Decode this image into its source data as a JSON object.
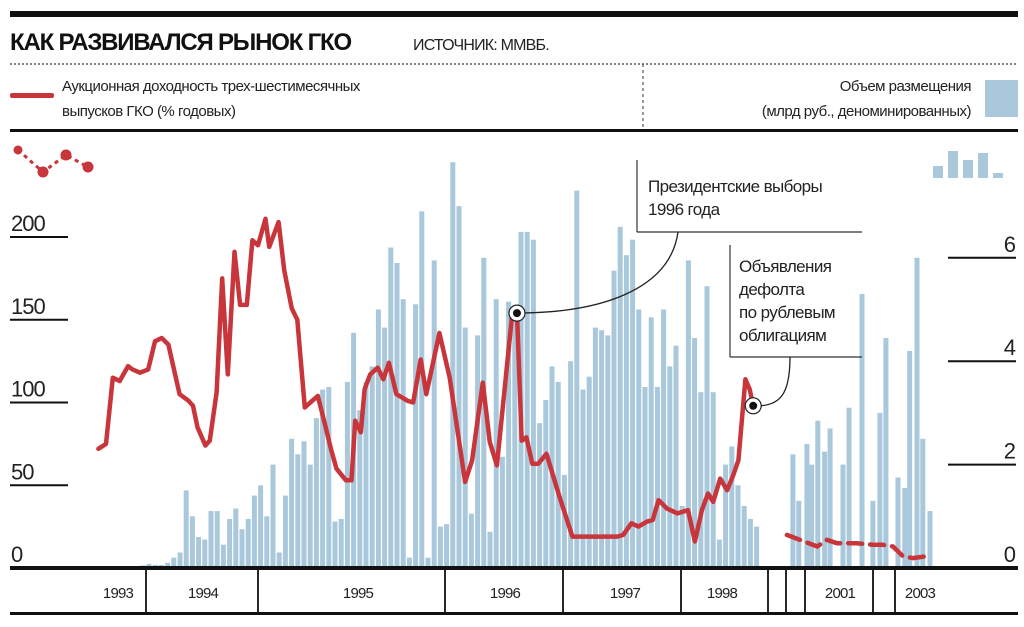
{
  "header": {
    "title": "КАК РАЗВИВАЛСЯ РЫНОК ГКО",
    "source": "ИСТОЧНИК: ММВБ."
  },
  "legend": {
    "line_label_1": "Аукционная доходность трех-шестимесячных",
    "line_label_2": "выпусков ГКО (% годовых)",
    "bar_label_1": "Объем размещения",
    "bar_label_2": "(млрд руб., деноминированных)"
  },
  "colors": {
    "line": "#c8353a",
    "bar": "#a9c8db",
    "text": "#222222"
  },
  "chart_data": {
    "type": "bar+line",
    "title": "КАК РАЗВИВАЛСЯ РЫНОК ГКО",
    "left_axis": {
      "label": "Аукционная доходность трех-шестимесячных выпусков ГКО (% годовых)",
      "ticks": [
        "0",
        "50",
        "100",
        "150",
        "200"
      ],
      "tick_values": [
        0,
        50,
        100,
        150,
        200
      ],
      "range": [
        0,
        210
      ]
    },
    "right_axis": {
      "label": "Объем размещения (млрд руб., деноминированных)",
      "ticks": [
        "0",
        "2",
        "4",
        "6"
      ],
      "tick_values": [
        0,
        2,
        4,
        6
      ],
      "range": [
        0,
        8
      ]
    },
    "x_axis": {
      "year_labels": [
        "1993",
        "1994",
        "1995",
        "1996",
        "1997",
        "1998",
        "2001",
        "2003"
      ]
    },
    "bars_segment_1": {
      "start_year": 1993.89,
      "end_year": 1998.87,
      "values": [
        0.02,
        0.05,
        0.08,
        0.06,
        0.06,
        0.1,
        0.2,
        0.3,
        1.5,
        1.0,
        0.6,
        0.55,
        1.1,
        1.1,
        0.45,
        0.95,
        1.15,
        0.75,
        0.95,
        1.4,
        1.6,
        1.0,
        2.0,
        0.3,
        1.4,
        2.5,
        2.2,
        2.45,
        2.0,
        2.9,
        3.45,
        3.5,
        0.9,
        0.95,
        3.6,
        4.55,
        3.05,
        3.6,
        3.9,
        5.0,
        4.65,
        6.2,
        5.9,
        5.2,
        0.2,
        5.1,
        6.9,
        0.2,
        5.95,
        0.8,
        0.85,
        7.85,
        7.0,
        4.65,
        1.05,
        4.5,
        6.0,
        0.7,
        5.2,
        2.15,
        5.15,
        5.0,
        6.5,
        6.5,
        6.35,
        2.8,
        3.25,
        3.9,
        3.6,
        1.8,
        4.0,
        7.3,
        3.45,
        3.7,
        4.65,
        4.6,
        4.5,
        5.75,
        6.6,
        6.05,
        6.35,
        5.0,
        3.5,
        4.85,
        3.5,
        5.0,
        3.9,
        4.3,
        1.2,
        5.95,
        4.45,
        3.4,
        5.45,
        3.4,
        0.55,
        2.0,
        2.35,
        1.6,
        1.2,
        0.95,
        0.8
      ]
    },
    "bars_segment_2": [
      [
        2000.37,
        2.2
      ],
      [
        2000.68,
        1.3
      ],
      [
        2001.03,
        2.4
      ],
      [
        2001.1,
        2.0
      ],
      [
        2001.19,
        2.85
      ],
      [
        2001.29,
        2.25
      ],
      [
        2001.37,
        2.7
      ],
      [
        2001.56,
        2.0
      ],
      [
        2001.65,
        3.1
      ],
      [
        2001.84,
        5.3
      ],
      [
        2002.0,
        1.3
      ],
      [
        2002.32,
        3.0
      ],
      [
        2002.59,
        4.45
      ],
      [
        2003.07,
        1.75
      ],
      [
        2003.22,
        1.55
      ],
      [
        2003.33,
        4.2
      ],
      [
        2003.49,
        6.0
      ],
      [
        2003.62,
        2.5
      ],
      [
        2003.78,
        1.1
      ]
    ],
    "yield_segment_1": [
      [
        1993.44,
        72
      ],
      [
        1993.53,
        75
      ],
      [
        1993.61,
        115
      ],
      [
        1993.69,
        113
      ],
      [
        1993.79,
        122
      ],
      [
        1993.84,
        120
      ],
      [
        1993.93,
        118
      ],
      [
        1994.02,
        120
      ],
      [
        1994.08,
        137
      ],
      [
        1994.14,
        139
      ],
      [
        1994.2,
        135
      ],
      [
        1994.26,
        117
      ],
      [
        1994.3,
        105
      ],
      [
        1994.38,
        101
      ],
      [
        1994.42,
        98
      ],
      [
        1994.46,
        85
      ],
      [
        1994.53,
        74
      ],
      [
        1994.57,
        77
      ],
      [
        1994.63,
        106
      ],
      [
        1994.68,
        175
      ],
      [
        1994.73,
        117
      ],
      [
        1994.79,
        191
      ],
      [
        1994.84,
        159
      ],
      [
        1994.9,
        159
      ],
      [
        1994.95,
        198
      ],
      [
        1995.0,
        195
      ],
      [
        1995.04,
        211
      ],
      [
        1995.06,
        194
      ],
      [
        1995.11,
        209
      ],
      [
        1995.14,
        180
      ],
      [
        1995.18,
        157
      ],
      [
        1995.21,
        150
      ],
      [
        1995.25,
        97
      ],
      [
        1995.29,
        101
      ],
      [
        1995.32,
        104
      ],
      [
        1995.36,
        86
      ],
      [
        1995.39,
        72
      ],
      [
        1995.42,
        60
      ],
      [
        1995.47,
        53
      ],
      [
        1995.5,
        53
      ],
      [
        1995.52,
        89
      ],
      [
        1995.55,
        82
      ],
      [
        1995.57,
        108
      ],
      [
        1995.6,
        117
      ],
      [
        1995.64,
        121
      ],
      [
        1995.67,
        114
      ],
      [
        1995.7,
        124
      ],
      [
        1995.74,
        105
      ],
      [
        1995.8,
        101
      ],
      [
        1995.83,
        100
      ],
      [
        1995.87,
        126
      ],
      [
        1995.9,
        105
      ],
      [
        1995.97,
        142
      ],
      [
        1996.04,
        115
      ],
      [
        1996.17,
        52
      ],
      [
        1996.23,
        65
      ],
      [
        1996.32,
        112
      ],
      [
        1996.38,
        76
      ],
      [
        1996.44,
        62
      ],
      [
        1996.57,
        154
      ],
      [
        1996.61,
        154
      ],
      [
        1996.65,
        77
      ],
      [
        1996.69,
        79
      ],
      [
        1996.74,
        63
      ],
      [
        1996.79,
        63
      ],
      [
        1996.86,
        69
      ],
      [
        1996.97,
        43
      ],
      [
        1997.08,
        19
      ],
      [
        1997.17,
        19
      ],
      [
        1997.31,
        19
      ],
      [
        1997.46,
        19
      ],
      [
        1997.51,
        20
      ],
      [
        1997.58,
        27
      ],
      [
        1997.64,
        25
      ],
      [
        1997.71,
        28
      ],
      [
        1997.76,
        29
      ],
      [
        1997.81,
        41
      ],
      [
        1997.88,
        36
      ],
      [
        1997.97,
        33
      ],
      [
        1998.08,
        35
      ],
      [
        1998.16,
        16
      ],
      [
        1998.24,
        35
      ],
      [
        1998.31,
        45
      ],
      [
        1998.37,
        40
      ],
      [
        1998.45,
        54
      ],
      [
        1998.53,
        47
      ],
      [
        1998.6,
        56
      ],
      [
        1998.66,
        65
      ],
      [
        1998.74,
        114
      ],
      [
        1998.79,
        108
      ],
      [
        1998.83,
        98
      ]
    ],
    "yield_segment_2": [
      [
        2000.05,
        20
      ],
      [
        2000.74,
        17
      ],
      [
        2001.18,
        13
      ],
      [
        2001.32,
        17
      ],
      [
        2001.47,
        15
      ],
      [
        2001.59,
        15
      ],
      [
        2001.76,
        15
      ],
      [
        2002.0,
        14
      ],
      [
        2002.45,
        14
      ],
      [
        2002.91,
        13
      ],
      [
        2003.18,
        7
      ],
      [
        2003.4,
        6
      ],
      [
        2003.67,
        7
      ]
    ],
    "annotations": [
      {
        "lines": [
          "Президентские выборы",
          "1996 года"
        ],
        "year": 1996.61,
        "value": 154
      },
      {
        "lines": [
          "Объявления",
          "дефолта",
          "по рублевым",
          "облигациям"
        ],
        "year": 1998.83,
        "value": 98
      }
    ]
  }
}
